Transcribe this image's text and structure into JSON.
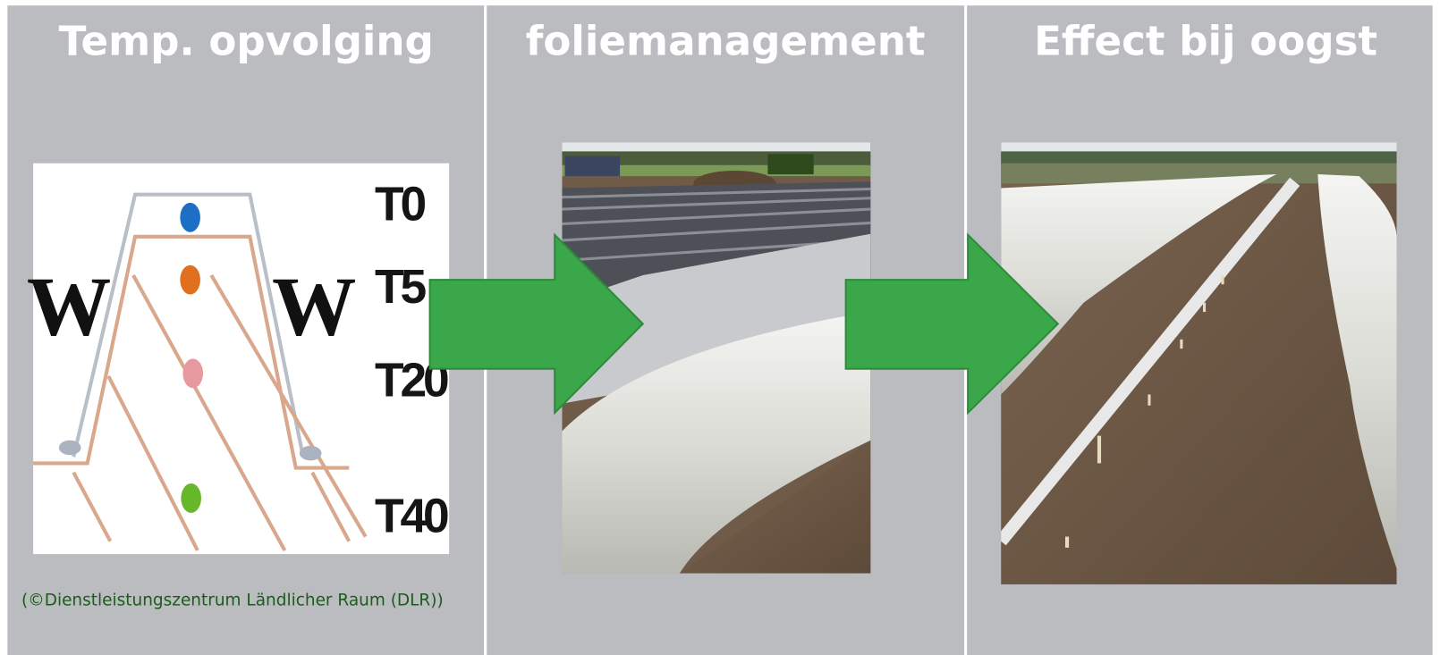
{
  "panels": [
    {
      "title": "Temp. opvolging"
    },
    {
      "title": "foliemanagement"
    },
    {
      "title": "Effect bij oogst"
    }
  ],
  "diagram": {
    "labels": [
      "W",
      "W",
      "T0",
      "T5",
      "T20",
      "T40"
    ]
  },
  "caption": "(©Dienstleistungszentrum Ländlicher Raum (DLR))"
}
